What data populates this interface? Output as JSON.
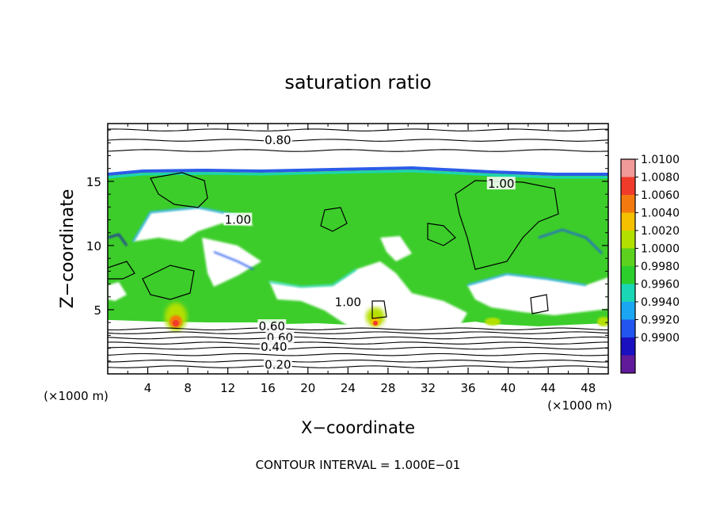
{
  "chart_data": {
    "type": "heatmap",
    "title": "saturation ratio",
    "xlabel": "X−coordinate",
    "ylabel": "Z−coordinate",
    "x_unit_left": "(×1000 m)",
    "x_unit_right": "(×1000 m)",
    "footer": "CONTOUR INTERVAL = 1.000E−01",
    "xlim": [
      0,
      50
    ],
    "ylim": [
      0,
      19.5
    ],
    "x_ticks": [
      {
        "value": 4,
        "label": "4"
      },
      {
        "value": 8,
        "label": "8"
      },
      {
        "value": 12,
        "label": "12"
      },
      {
        "value": 16,
        "label": "16"
      },
      {
        "value": 20,
        "label": "20"
      },
      {
        "value": 24,
        "label": "24"
      },
      {
        "value": 28,
        "label": "28"
      },
      {
        "value": 32,
        "label": "32"
      },
      {
        "value": 36,
        "label": "36"
      },
      {
        "value": 40,
        "label": "40"
      },
      {
        "value": 44,
        "label": "44"
      },
      {
        "value": 48,
        "label": "48"
      }
    ],
    "y_ticks": [
      {
        "value": 5,
        "label": "5"
      },
      {
        "value": 10,
        "label": "10"
      },
      {
        "value": 15,
        "label": "15"
      }
    ],
    "colorbar": {
      "range": [
        0.99,
        1.01
      ],
      "levels": [
        {
          "label": "1.0100",
          "color": "#f19a9a"
        },
        {
          "label": "1.0080",
          "color": "#f03a2a"
        },
        {
          "label": "1.0060",
          "color": "#f47a10"
        },
        {
          "label": "1.0040",
          "color": "#f4c000"
        },
        {
          "label": "1.0020",
          "color": "#b4e000"
        },
        {
          "label": "1.0000",
          "color": "#5cd21e"
        },
        {
          "label": "0.9980",
          "color": "#2cce2c"
        },
        {
          "label": "0.9960",
          "color": "#1ad6b4"
        },
        {
          "label": "0.9940",
          "color": "#1aa6f2"
        },
        {
          "label": "0.9920",
          "color": "#2255f0"
        },
        {
          "label": "0.9900",
          "color": "#1a10c0"
        },
        {
          "label": "",
          "color": "#601a9a"
        }
      ]
    },
    "contour_labels": [
      {
        "label": "0.80",
        "x": 17,
        "y": 18.2
      },
      {
        "label": "1.00",
        "x": 39.3,
        "y": 14.8
      },
      {
        "label": "1.00",
        "x": 13,
        "y": 12
      },
      {
        "label": "1.00",
        "x": 24,
        "y": 5.6
      },
      {
        "label": "0.60",
        "x": 16.4,
        "y": 3.7
      },
      {
        "label": "0.60",
        "x": 17.2,
        "y": 2.8
      },
      {
        "label": "0.40",
        "x": 16.6,
        "y": 2.1
      },
      {
        "label": "0.20",
        "x": 17,
        "y": 0.7
      }
    ],
    "stratified_contours_z": [
      0.55,
      1.0,
      1.5,
      2.0,
      2.4,
      2.8,
      3.2,
      3.5,
      17.4,
      18.2,
      19.0
    ],
    "regions": [
      {
        "label": "green_layer_top",
        "z": 15.9
      },
      {
        "label": "hot_spot",
        "x": 6.8,
        "z": 4.2
      },
      {
        "label": "hot_spot",
        "x": 26.8,
        "z": 4.2
      }
    ]
  }
}
